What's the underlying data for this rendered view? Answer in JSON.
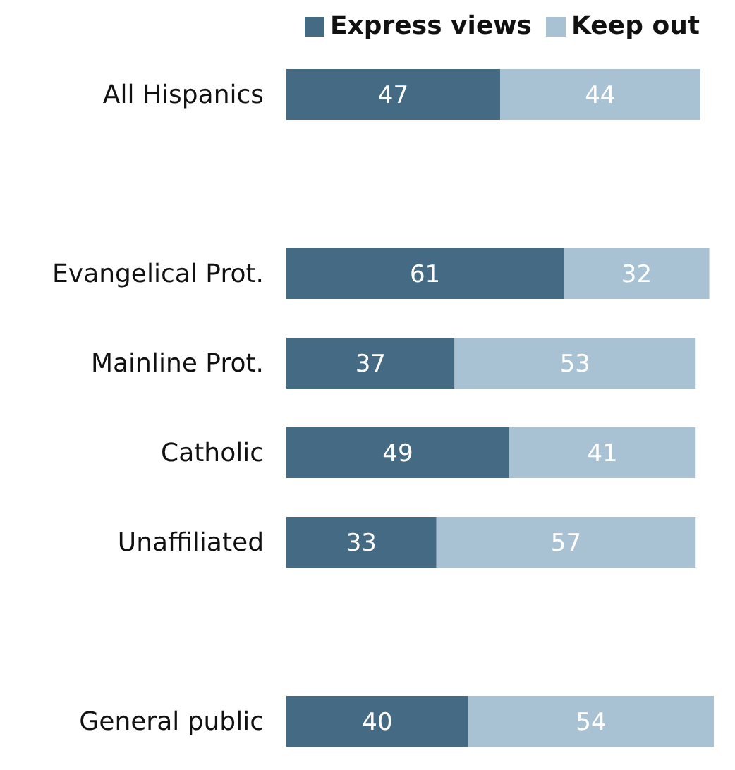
{
  "chart_data": {
    "type": "bar",
    "orientation": "horizontal",
    "stacked": true,
    "tick_labels": "y",
    "data_labels": true,
    "legend": "top right",
    "grid": false,
    "categories": [
      "All Hispanics",
      null,
      "Evangelical Prot.",
      "Mainline Prot.",
      "Catholic",
      "Unaffiliated",
      null,
      "General public"
    ],
    "series": [
      {
        "name": "Express views",
        "color": "#456a84",
        "values": [
          47,
          null,
          61,
          37,
          49,
          33,
          null,
          40
        ]
      },
      {
        "name": "Keep out",
        "color": "#a8c1d3",
        "values": [
          44,
          null,
          32,
          53,
          41,
          57,
          null,
          54
        ]
      }
    ]
  }
}
